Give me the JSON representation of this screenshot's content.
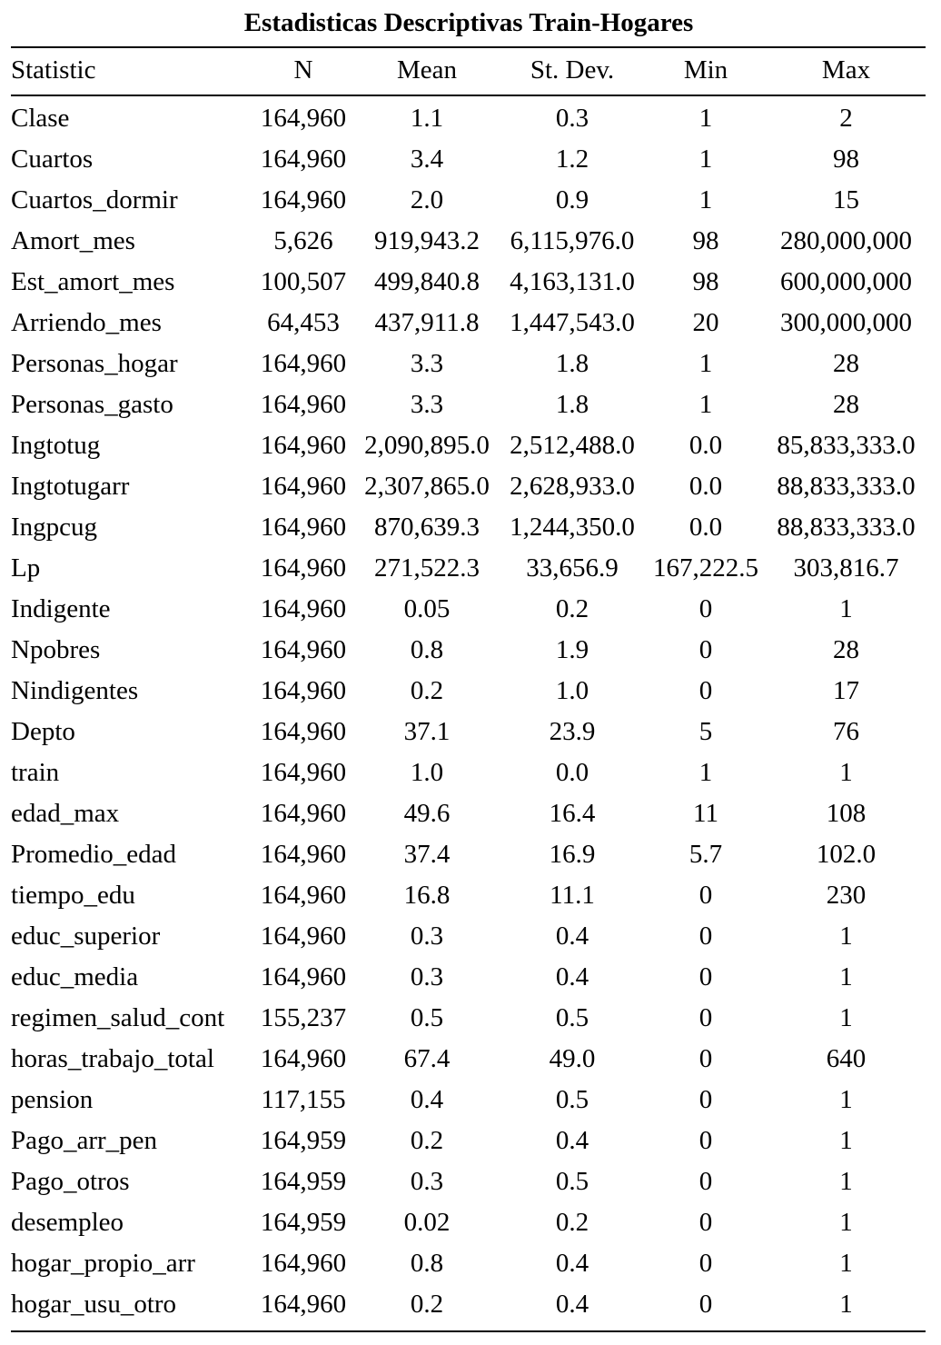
{
  "title": "Estadisticas Descriptivas Train-Hogares",
  "columns": [
    "Statistic",
    "N",
    "Mean",
    "St. Dev.",
    "Min",
    "Max"
  ],
  "rows": [
    [
      "Clase",
      "164,960",
      "1.1",
      "0.3",
      "1",
      "2"
    ],
    [
      "Cuartos",
      "164,960",
      "3.4",
      "1.2",
      "1",
      "98"
    ],
    [
      "Cuartos_dormir",
      "164,960",
      "2.0",
      "0.9",
      "1",
      "15"
    ],
    [
      "Amort_mes",
      "5,626",
      "919,943.2",
      "6,115,976.0",
      "98",
      "280,000,000"
    ],
    [
      "Est_amort_mes",
      "100,507",
      "499,840.8",
      "4,163,131.0",
      "98",
      "600,000,000"
    ],
    [
      "Arriendo_mes",
      "64,453",
      "437,911.8",
      "1,447,543.0",
      "20",
      "300,000,000"
    ],
    [
      "Personas_hogar",
      "164,960",
      "3.3",
      "1.8",
      "1",
      "28"
    ],
    [
      "Personas_gasto",
      "164,960",
      "3.3",
      "1.8",
      "1",
      "28"
    ],
    [
      "Ingtotug",
      "164,960",
      "2,090,895.0",
      "2,512,488.0",
      "0.0",
      "85,833,333.0"
    ],
    [
      "Ingtotugarr",
      "164,960",
      "2,307,865.0",
      "2,628,933.0",
      "0.0",
      "88,833,333.0"
    ],
    [
      "Ingpcug",
      "164,960",
      "870,639.3",
      "1,244,350.0",
      "0.0",
      "88,833,333.0"
    ],
    [
      "Lp",
      "164,960",
      "271,522.3",
      "33,656.9",
      "167,222.5",
      "303,816.7"
    ],
    [
      "Indigente",
      "164,960",
      "0.05",
      "0.2",
      "0",
      "1"
    ],
    [
      "Npobres",
      "164,960",
      "0.8",
      "1.9",
      "0",
      "28"
    ],
    [
      "Nindigentes",
      "164,960",
      "0.2",
      "1.0",
      "0",
      "17"
    ],
    [
      "Depto",
      "164,960",
      "37.1",
      "23.9",
      "5",
      "76"
    ],
    [
      "train",
      "164,960",
      "1.0",
      "0.0",
      "1",
      "1"
    ],
    [
      "edad_max",
      "164,960",
      "49.6",
      "16.4",
      "11",
      "108"
    ],
    [
      "Promedio_edad",
      "164,960",
      "37.4",
      "16.9",
      "5.7",
      "102.0"
    ],
    [
      "tiempo_edu",
      "164,960",
      "16.8",
      "11.1",
      "0",
      "230"
    ],
    [
      "educ_superior",
      "164,960",
      "0.3",
      "0.4",
      "0",
      "1"
    ],
    [
      "educ_media",
      "164,960",
      "0.3",
      "0.4",
      "0",
      "1"
    ],
    [
      "regimen_salud_cont",
      "155,237",
      "0.5",
      "0.5",
      "0",
      "1"
    ],
    [
      "horas_trabajo_total",
      "164,960",
      "67.4",
      "49.0",
      "0",
      "640"
    ],
    [
      "pension",
      "117,155",
      "0.4",
      "0.5",
      "0",
      "1"
    ],
    [
      "Pago_arr_pen",
      "164,959",
      "0.2",
      "0.4",
      "0",
      "1"
    ],
    [
      "Pago_otros",
      "164,959",
      "0.3",
      "0.5",
      "0",
      "1"
    ],
    [
      "desempleo",
      "164,959",
      "0.02",
      "0.2",
      "0",
      "1"
    ],
    [
      "hogar_propio_arr",
      "164,960",
      "0.8",
      "0.4",
      "0",
      "1"
    ],
    [
      "hogar_usu_otro",
      "164,960",
      "0.2",
      "0.4",
      "0",
      "1"
    ]
  ]
}
